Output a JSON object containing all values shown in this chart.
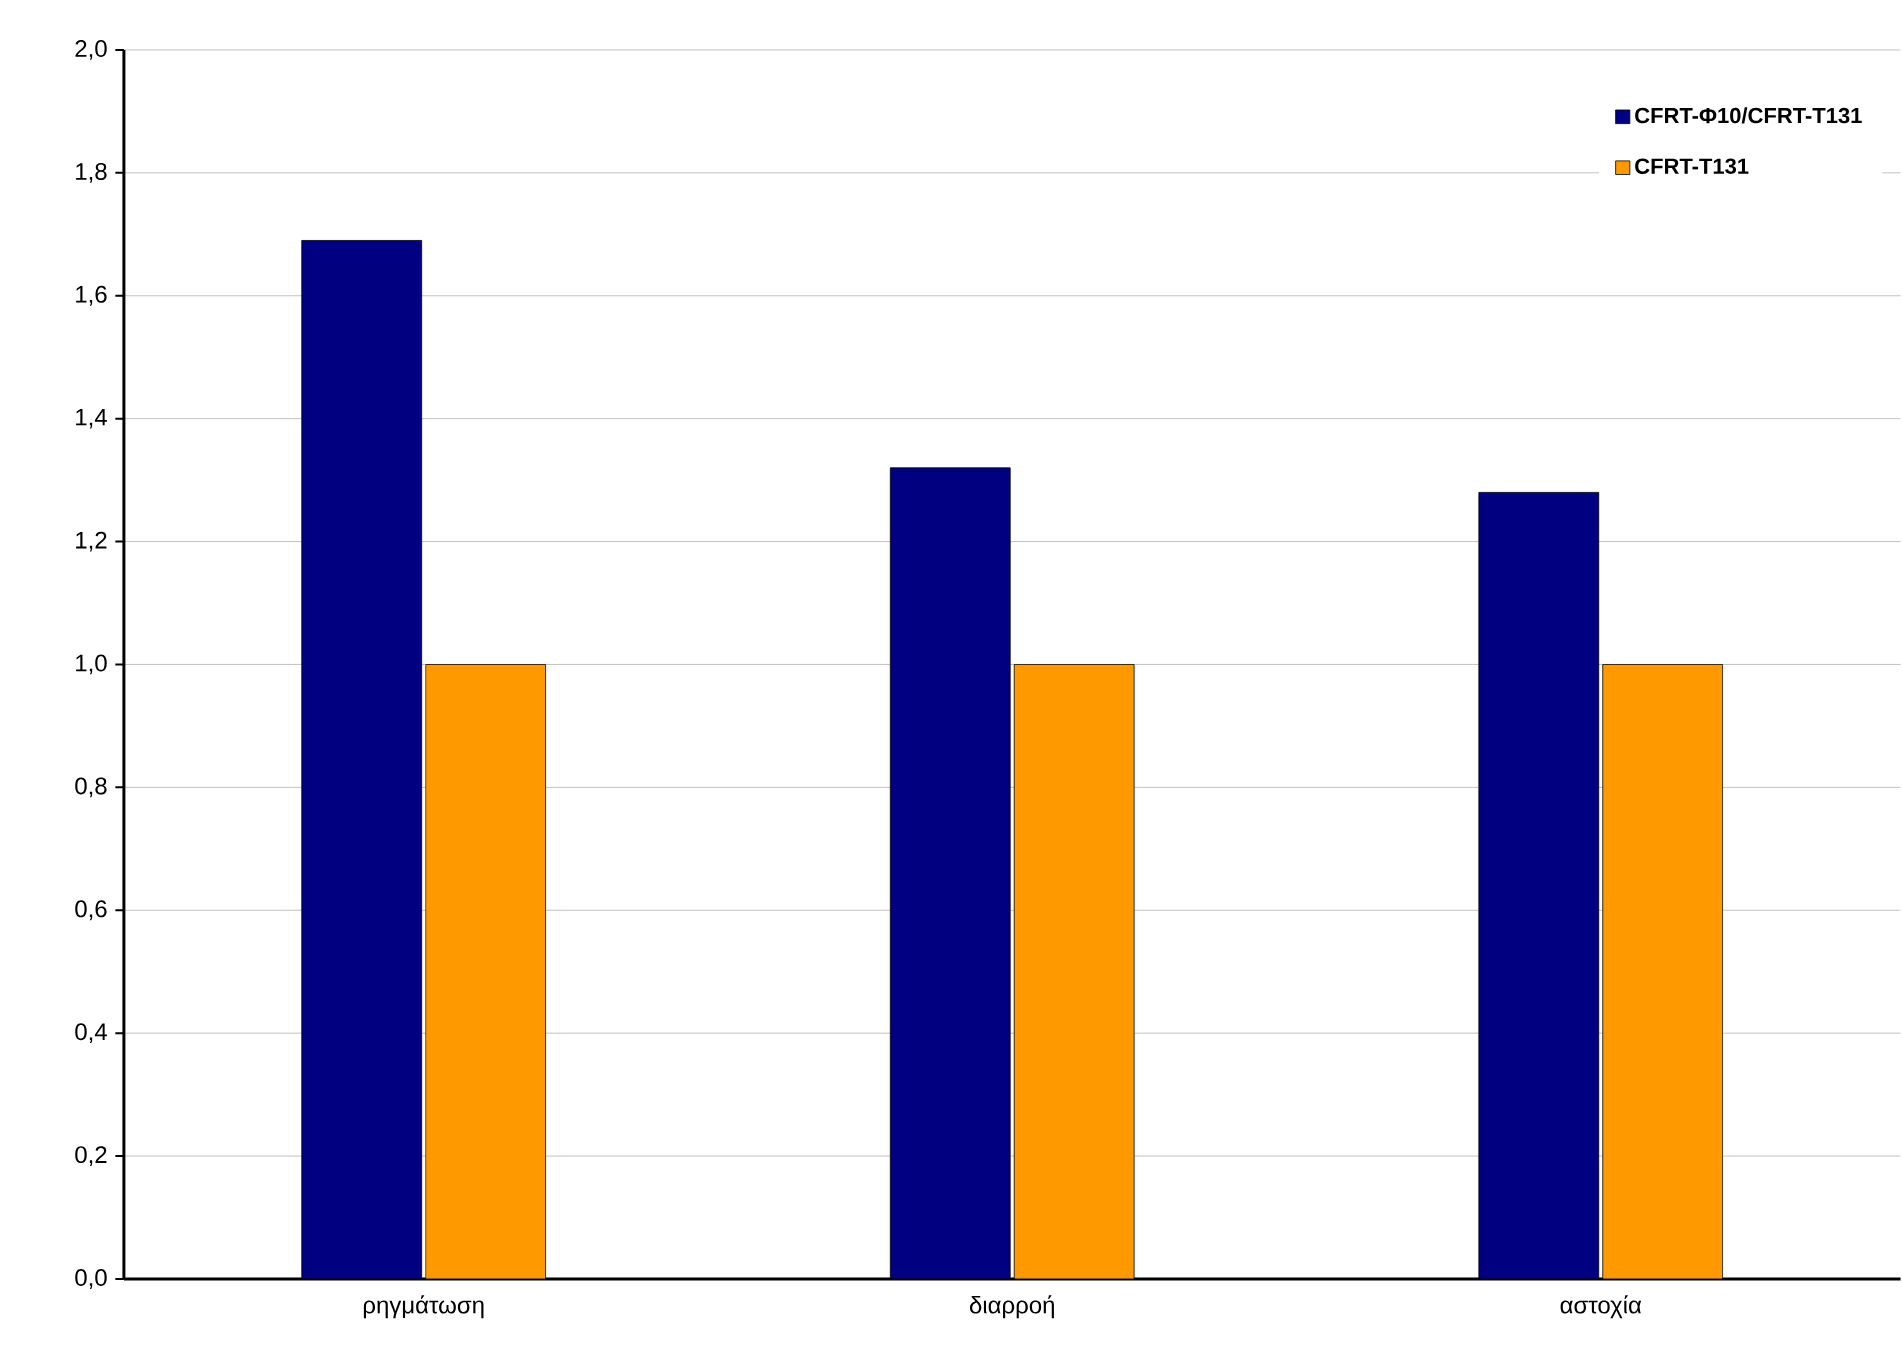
{
  "chart_data": {
    "type": "bar",
    "categories": [
      "ρηγμάτωση",
      "διαρροή",
      "αστοχία"
    ],
    "series": [
      {
        "name": "CFRT-Φ10/CFRT-T131",
        "color": "#000080",
        "values": [
          1.69,
          1.32,
          1.28
        ]
      },
      {
        "name": "CFRT-T131",
        "color": "#ff9900",
        "values": [
          1.0,
          1.0,
          1.0
        ]
      }
    ],
    "ylim": [
      0,
      2
    ],
    "yticks": [
      {
        "value": 0,
        "label": "0,0"
      },
      {
        "value": 0.2,
        "label": "0,2"
      },
      {
        "value": 0.4,
        "label": "0,4"
      },
      {
        "value": 0.6,
        "label": "0,6"
      },
      {
        "value": 0.8,
        "label": "0,8"
      },
      {
        "value": 1.0,
        "label": "1,0"
      },
      {
        "value": 1.2,
        "label": "1,2"
      },
      {
        "value": 1.4,
        "label": "1,4"
      },
      {
        "value": 1.6,
        "label": "1,6"
      },
      {
        "value": 1.8,
        "label": "1,8"
      },
      {
        "value": 2.0,
        "label": "2,0"
      }
    ],
    "grid": "y",
    "legend": "top right"
  }
}
